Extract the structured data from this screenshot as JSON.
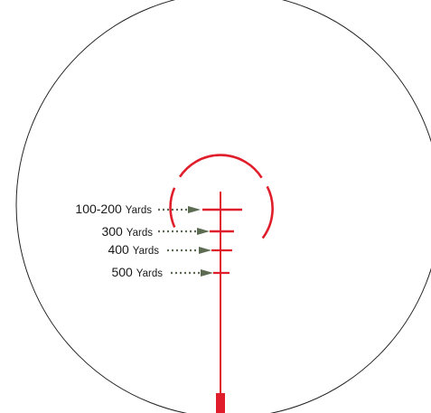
{
  "labels": {
    "l1": {
      "value": "100-200",
      "unit": "Yards"
    },
    "l2": {
      "value": "300",
      "unit": "Yards"
    },
    "l3": {
      "value": "400",
      "unit": "Yards"
    },
    "l4": {
      "value": "500",
      "unit": "Yards"
    }
  },
  "colors": {
    "reticle": "#e01e2b",
    "arrow": "#5c6b52",
    "scope_outline": "#222222",
    "background": "#ffffff",
    "text": "#1a1a1a"
  }
}
